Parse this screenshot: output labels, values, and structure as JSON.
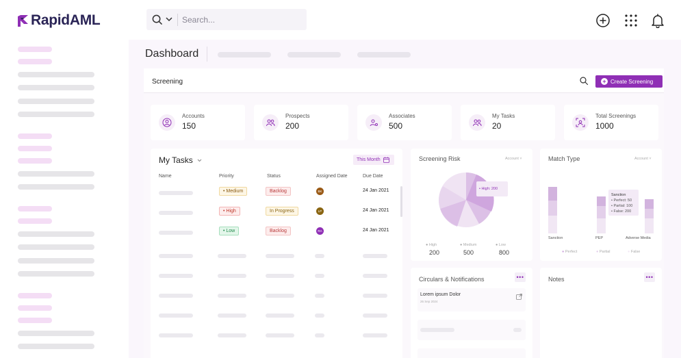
{
  "app": {
    "name": "RapidAML"
  },
  "search": {
    "placeholder": "Search..."
  },
  "page": {
    "title": "Dashboard"
  },
  "screening": {
    "title": "Screening",
    "create_label": "Create Screening"
  },
  "stats": [
    {
      "label": "Accounts",
      "value": "150",
      "icon": "user-circle-icon"
    },
    {
      "label": "Prospects",
      "value": "200",
      "icon": "users-icon"
    },
    {
      "label": "Associates",
      "value": "500",
      "icon": "user-link-icon"
    },
    {
      "label": "My Tasks",
      "value": "20",
      "icon": "users-icon"
    },
    {
      "label": "Total Screenings",
      "value": "1000",
      "icon": "scan-user-icon"
    }
  ],
  "tasks": {
    "title": "My Tasks",
    "filter_label": "This Month",
    "columns": [
      "Name",
      "Priority",
      "Status",
      "Assigned Date",
      "Due Date"
    ],
    "rows": [
      {
        "priority": "• Medium",
        "priority_level": "medium",
        "status": "Backlog",
        "assignee": "BK",
        "assignee_color": "#9a5a16",
        "due": "24 Jan 2021"
      },
      {
        "priority": "• High",
        "priority_level": "high",
        "status": "In Progress",
        "assignee": "LP",
        "assignee_color": "#8a6512",
        "due": "24 Jan 2021"
      },
      {
        "priority": "• Low",
        "priority_level": "low",
        "status": "Backlog",
        "assignee": "RA",
        "assignee_color": "#8f2fb5",
        "due": "24 Jan 2021"
      }
    ]
  },
  "risk": {
    "title": "Screening Risk",
    "filter": "Account",
    "tooltip": "• High: 200",
    "legend": [
      {
        "label": "High",
        "value": "200"
      },
      {
        "label": "Medium",
        "value": "500"
      },
      {
        "label": "Low",
        "value": "800"
      }
    ]
  },
  "match": {
    "title": "Match Type",
    "filter": "Account",
    "categories": [
      "Sanction",
      "PEP",
      "Adverse Media"
    ],
    "tooltip": {
      "title": "Sanction",
      "lines": [
        "• Perfect: 50",
        "• Partial: 100",
        "• False: 200"
      ]
    },
    "legend": [
      "Perfect",
      "Partial",
      "False"
    ]
  },
  "circulars": {
    "title": "Circulars & Notifications",
    "item_title": "Lorem ipsum Dolor",
    "item_date": "26 Sep 2024"
  },
  "notes": {
    "title": "Notes"
  },
  "colors": {
    "accent": "#8f2fb5",
    "main_bg": "#faf6fc",
    "logo": "#2a2456"
  }
}
